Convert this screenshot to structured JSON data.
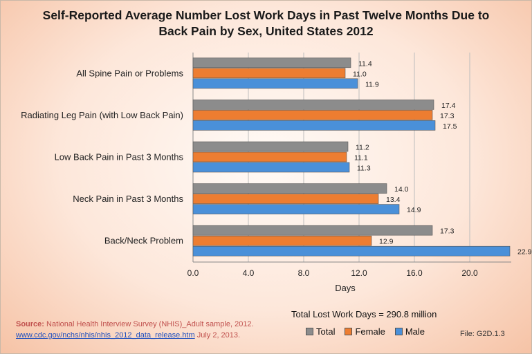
{
  "chart_data": {
    "type": "bar",
    "orientation": "horizontal",
    "title_line1": "Self-Reported Average Number Lost Work Days in Past Twelve Months Due to",
    "title_line2": "Back Pain by Sex, United States 2012",
    "categories": [
      "All Spine Pain or Problems",
      "Radiating Leg Pain (with Low Back Pain)",
      "Low Back Pain in Past 3 Months",
      "Neck Pain in Past 3 Months",
      "Back/Neck Problem"
    ],
    "series": [
      {
        "name": "Total",
        "color": "#8c8c8c",
        "values": [
          11.4,
          17.4,
          11.2,
          14.0,
          17.3
        ]
      },
      {
        "name": "Female",
        "color": "#ed7d31",
        "values": [
          11.0,
          17.3,
          11.1,
          13.4,
          12.9
        ]
      },
      {
        "name": "Male",
        "color": "#4a90d9",
        "values": [
          11.9,
          17.5,
          11.3,
          14.9,
          22.9
        ]
      }
    ],
    "xlabel": "Days",
    "xlim": [
      0,
      23
    ],
    "xticks": [
      "0.0",
      "4.0",
      "8.0",
      "12.0",
      "16.0",
      "20.0"
    ],
    "xtick_values": [
      0,
      4,
      8,
      12,
      16,
      20
    ],
    "grid": true,
    "legend_position": "bottom"
  },
  "total_note": "Total Lost Work Days = 290.8 million",
  "legend": {
    "total": "Total",
    "female": "Female",
    "male": "Male",
    "colors": {
      "total": "#8c8c8c",
      "female": "#ed7d31",
      "male": "#4a90d9"
    }
  },
  "source": {
    "label": "Source:",
    "text": " National Health Interview Survey (NHIS)_Adult sample, 2012.",
    "link": "www.cdc.gov/nchs/nhis/nhis_2012_data_release.htm",
    "date": " July 2, 2013."
  },
  "file_id": "File: G2D.1.3"
}
